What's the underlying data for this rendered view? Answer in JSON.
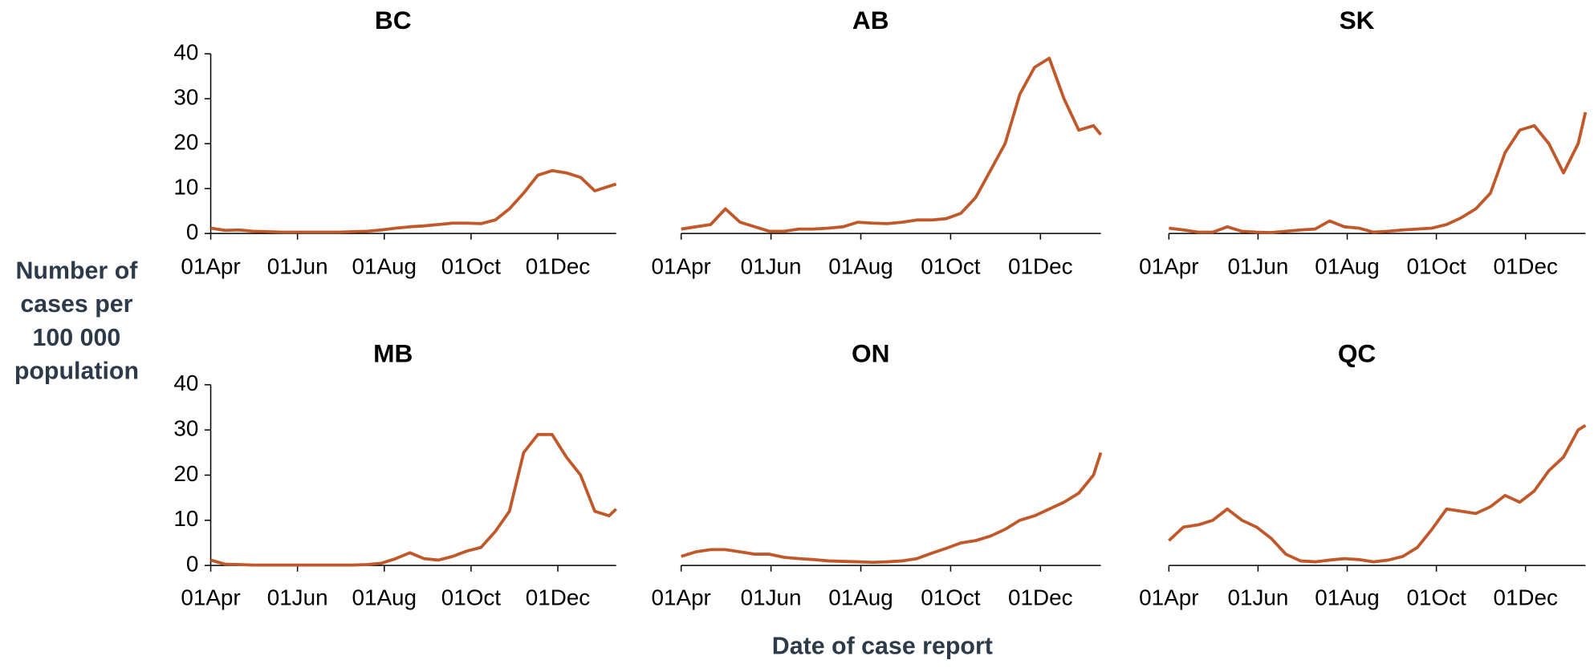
{
  "ylabel": [
    "Number of",
    "cases per",
    "100 000",
    "population"
  ],
  "xlabel": "Date of case report",
  "chart_data": [
    {
      "type": "line",
      "title": "BC",
      "color": "#c0582a",
      "x": [
        0,
        10,
        20,
        30,
        40,
        50,
        60,
        70,
        80,
        90,
        100,
        110,
        120,
        130,
        140,
        150,
        160,
        170,
        180,
        190,
        200,
        210,
        220,
        230,
        240,
        250,
        260,
        270,
        280,
        285
      ],
      "values": [
        1.2,
        0.7,
        0.8,
        0.5,
        0.4,
        0.3,
        0.3,
        0.3,
        0.3,
        0.3,
        0.4,
        0.5,
        0.8,
        1.2,
        1.5,
        1.7,
        2.0,
        2.3,
        2.3,
        2.2,
        3.0,
        5.5,
        9,
        13,
        14,
        13.5,
        12.5,
        9.5,
        10.5,
        11
      ],
      "xlim": [
        0,
        285
      ],
      "ylim": [
        0,
        40
      ],
      "yticks": [
        0,
        10,
        20,
        30,
        40
      ],
      "xticks": [
        {
          "value": 0,
          "label": "01Apr"
        },
        {
          "value": 61,
          "label": "01Jun"
        },
        {
          "value": 122,
          "label": "01Aug"
        },
        {
          "value": 183,
          "label": "01Oct"
        },
        {
          "value": 244,
          "label": "01Dec"
        }
      ]
    },
    {
      "type": "line",
      "title": "AB",
      "color": "#c0582a",
      "x": [
        0,
        10,
        20,
        30,
        40,
        50,
        60,
        70,
        80,
        90,
        100,
        110,
        120,
        130,
        140,
        150,
        160,
        170,
        180,
        190,
        200,
        210,
        220,
        230,
        240,
        250,
        260,
        270,
        280,
        285
      ],
      "values": [
        1,
        1.5,
        2,
        5.5,
        2.5,
        1.5,
        0.5,
        0.5,
        1,
        1,
        1.2,
        1.5,
        2.5,
        2.3,
        2.2,
        2.5,
        3,
        3,
        3.3,
        4.5,
        8,
        14,
        20,
        31,
        37,
        39,
        30,
        23,
        24,
        22
      ],
      "xlim": [
        0,
        285
      ],
      "ylim": [
        0,
        40
      ],
      "xticks": [
        {
          "value": 0,
          "label": "01Apr"
        },
        {
          "value": 61,
          "label": "01Jun"
        },
        {
          "value": 122,
          "label": "01Aug"
        },
        {
          "value": 183,
          "label": "01Oct"
        },
        {
          "value": 244,
          "label": "01Dec"
        }
      ]
    },
    {
      "type": "line",
      "title": "SK",
      "color": "#c0582a",
      "x": [
        0,
        10,
        20,
        30,
        40,
        50,
        60,
        70,
        80,
        90,
        100,
        110,
        120,
        130,
        140,
        150,
        160,
        170,
        180,
        190,
        200,
        210,
        220,
        230,
        240,
        250,
        260,
        270,
        280,
        285
      ],
      "values": [
        1.2,
        0.8,
        0.3,
        0.3,
        1.5,
        0.5,
        0.3,
        0.2,
        0.5,
        0.8,
        1,
        2.8,
        1.5,
        1.2,
        0.3,
        0.5,
        0.8,
        1,
        1.2,
        2,
        3.5,
        5.5,
        9,
        18,
        23,
        24,
        20,
        13.5,
        20,
        27
      ],
      "xlim": [
        0,
        285
      ],
      "ylim": [
        0,
        40
      ],
      "xticks": [
        {
          "value": 0,
          "label": "01Apr"
        },
        {
          "value": 61,
          "label": "01Jun"
        },
        {
          "value": 122,
          "label": "01Aug"
        },
        {
          "value": 183,
          "label": "01Oct"
        },
        {
          "value": 244,
          "label": "01Dec"
        }
      ]
    },
    {
      "type": "line",
      "title": "MB",
      "color": "#c0582a",
      "x": [
        0,
        10,
        20,
        30,
        40,
        50,
        60,
        70,
        80,
        90,
        100,
        110,
        120,
        130,
        140,
        150,
        160,
        170,
        180,
        190,
        200,
        210,
        220,
        230,
        240,
        250,
        260,
        270,
        280,
        285
      ],
      "values": [
        1.2,
        0.3,
        0.2,
        0.1,
        0.1,
        0.1,
        0.1,
        0.1,
        0.1,
        0.1,
        0.1,
        0.2,
        0.5,
        1.5,
        2.8,
        1.5,
        1.2,
        2,
        3.2,
        4,
        7.5,
        12,
        25,
        29,
        29,
        24,
        20,
        12,
        11,
        12.5
      ],
      "xlim": [
        0,
        285
      ],
      "ylim": [
        0,
        40
      ],
      "yticks": [
        0,
        10,
        20,
        30,
        40
      ],
      "xticks": [
        {
          "value": 0,
          "label": "01Apr"
        },
        {
          "value": 61,
          "label": "01Jun"
        },
        {
          "value": 122,
          "label": "01Aug"
        },
        {
          "value": 183,
          "label": "01Oct"
        },
        {
          "value": 244,
          "label": "01Dec"
        }
      ]
    },
    {
      "type": "line",
      "title": "ON",
      "color": "#c0582a",
      "x": [
        0,
        10,
        20,
        30,
        40,
        50,
        60,
        70,
        80,
        90,
        100,
        110,
        120,
        130,
        140,
        150,
        160,
        170,
        180,
        190,
        200,
        210,
        220,
        230,
        240,
        250,
        260,
        270,
        280,
        285
      ],
      "values": [
        2,
        3,
        3.5,
        3.5,
        3,
        2.5,
        2.5,
        1.8,
        1.5,
        1.3,
        1,
        0.9,
        0.8,
        0.7,
        0.8,
        1,
        1.5,
        2.7,
        3.8,
        5,
        5.5,
        6.5,
        8,
        10,
        11,
        12.5,
        14,
        16,
        20,
        25
      ],
      "xlim": [
        0,
        285
      ],
      "ylim": [
        0,
        40
      ],
      "xticks": [
        {
          "value": 0,
          "label": "01Apr"
        },
        {
          "value": 61,
          "label": "01Jun"
        },
        {
          "value": 122,
          "label": "01Aug"
        },
        {
          "value": 183,
          "label": "01Oct"
        },
        {
          "value": 244,
          "label": "01Dec"
        }
      ]
    },
    {
      "type": "line",
      "title": "QC",
      "color": "#c0582a",
      "x": [
        0,
        10,
        20,
        30,
        40,
        50,
        60,
        70,
        80,
        90,
        100,
        110,
        120,
        130,
        140,
        150,
        160,
        170,
        180,
        190,
        200,
        210,
        220,
        230,
        240,
        250,
        260,
        270,
        280,
        285
      ],
      "values": [
        5.5,
        8.5,
        9,
        10,
        12.5,
        10,
        8.5,
        6,
        2.5,
        1,
        0.8,
        1.2,
        1.5,
        1.3,
        0.8,
        1.2,
        2,
        4,
        8,
        12.5,
        12,
        11.5,
        13,
        15.5,
        14,
        16.5,
        21,
        24,
        30,
        31
      ],
      "xlim": [
        0,
        285
      ],
      "ylim": [
        0,
        40
      ],
      "xticks": [
        {
          "value": 0,
          "label": "01Apr"
        },
        {
          "value": 61,
          "label": "01Jun"
        },
        {
          "value": 122,
          "label": "01Aug"
        },
        {
          "value": 183,
          "label": "01Oct"
        },
        {
          "value": 244,
          "label": "01Dec"
        }
      ]
    }
  ]
}
